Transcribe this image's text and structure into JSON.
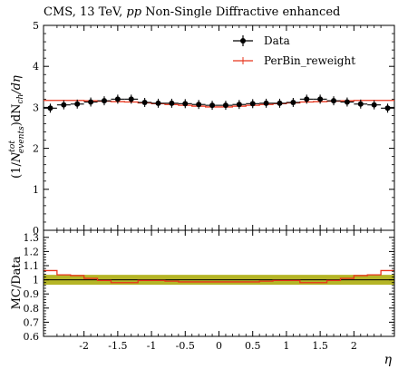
{
  "chart_data": {
    "type": "line",
    "title": "CMS, 13 TeV, pp Non-Single Diffractive enhanced",
    "title_parts": {
      "prefix": "CMS, 13 TeV, ",
      "italic": "pp",
      "suffix": " Non-Single Diffractive enhanced"
    },
    "xlabel": "η",
    "ylabel_main": "(1/N_events^tot) dN_ch/dη",
    "ylabel_main_parts": {
      "pre": "(1/",
      "N": "N",
      "sup": "tot",
      "sub": "events",
      "post": ")dN",
      "sub2": "ch",
      "end": "/dη"
    },
    "ylabel_ratio": "MC/Data",
    "xlim": [
      -2.6,
      2.6
    ],
    "ylim_main": [
      0,
      5
    ],
    "ylim_ratio": [
      0.6,
      1.35
    ],
    "x_ticks": [
      -2,
      -1.5,
      -1,
      -0.5,
      0,
      0.5,
      1,
      1.5,
      2
    ],
    "x_tick_labels": [
      "-2",
      "-1.5",
      "-1",
      "-0.5",
      "0",
      "0.5",
      "1",
      "1.5",
      "2"
    ],
    "y_ticks_main": [
      0,
      1,
      2,
      3,
      4,
      5
    ],
    "y_ticks_ratio": [
      0.6,
      0.7,
      0.8,
      0.9,
      1,
      1.1,
      1.2,
      1.3
    ],
    "y_tick_labels_ratio": [
      "0.6",
      "0.7",
      "0.8",
      "0.9",
      "1",
      "1.1",
      "1.2",
      "1.3"
    ],
    "legend_position": "top-right",
    "bin_edges": [
      -2.6,
      -2.4,
      -2.2,
      -2.0,
      -1.8,
      -1.6,
      -1.4,
      -1.2,
      -1.0,
      -0.8,
      -0.6,
      -0.4,
      -0.2,
      0.0,
      0.2,
      0.4,
      0.6,
      0.8,
      1.0,
      1.2,
      1.4,
      1.6,
      1.8,
      2.0,
      2.2,
      2.4,
      2.6
    ],
    "series": [
      {
        "name": "Data",
        "color": "#000000",
        "x": [
          -2.5,
          -2.3,
          -2.1,
          -1.9,
          -1.7,
          -1.5,
          -1.3,
          -1.1,
          -0.9,
          -0.7,
          -0.5,
          -0.3,
          -0.1,
          0.1,
          0.3,
          0.5,
          0.7,
          0.9,
          1.1,
          1.3,
          1.5,
          1.7,
          1.9,
          2.1,
          2.3,
          2.5
        ],
        "values": [
          2.98,
          3.06,
          3.08,
          3.13,
          3.16,
          3.2,
          3.2,
          3.12,
          3.1,
          3.1,
          3.09,
          3.07,
          3.05,
          3.05,
          3.07,
          3.09,
          3.1,
          3.1,
          3.12,
          3.2,
          3.2,
          3.16,
          3.13,
          3.08,
          3.06,
          2.98
        ],
        "errors": [
          0.11,
          0.11,
          0.11,
          0.11,
          0.11,
          0.11,
          0.11,
          0.11,
          0.11,
          0.11,
          0.11,
          0.11,
          0.11,
          0.11,
          0.11,
          0.11,
          0.11,
          0.11,
          0.11,
          0.11,
          0.11,
          0.11,
          0.11,
          0.11,
          0.11,
          0.11
        ]
      },
      {
        "name": "PerBin_reweight",
        "color": "#e8341c",
        "values": [
          3.17,
          3.17,
          3.17,
          3.16,
          3.15,
          3.14,
          3.13,
          3.11,
          3.09,
          3.07,
          3.05,
          3.03,
          3.01,
          3.01,
          3.03,
          3.05,
          3.07,
          3.09,
          3.11,
          3.13,
          3.14,
          3.15,
          3.16,
          3.17,
          3.17,
          3.17
        ]
      }
    ],
    "ratio": {
      "values": [
        1.065,
        1.035,
        1.03,
        1.01,
        0.995,
        0.98,
        0.98,
        0.995,
        0.995,
        0.99,
        0.985,
        0.985,
        0.985,
        0.985,
        0.985,
        0.985,
        0.99,
        0.995,
        0.995,
        0.98,
        0.98,
        0.995,
        1.01,
        1.03,
        1.035,
        1.065
      ],
      "band": [
        0.965,
        1.035
      ],
      "band_color": "#a8a800",
      "reference": 1
    }
  }
}
